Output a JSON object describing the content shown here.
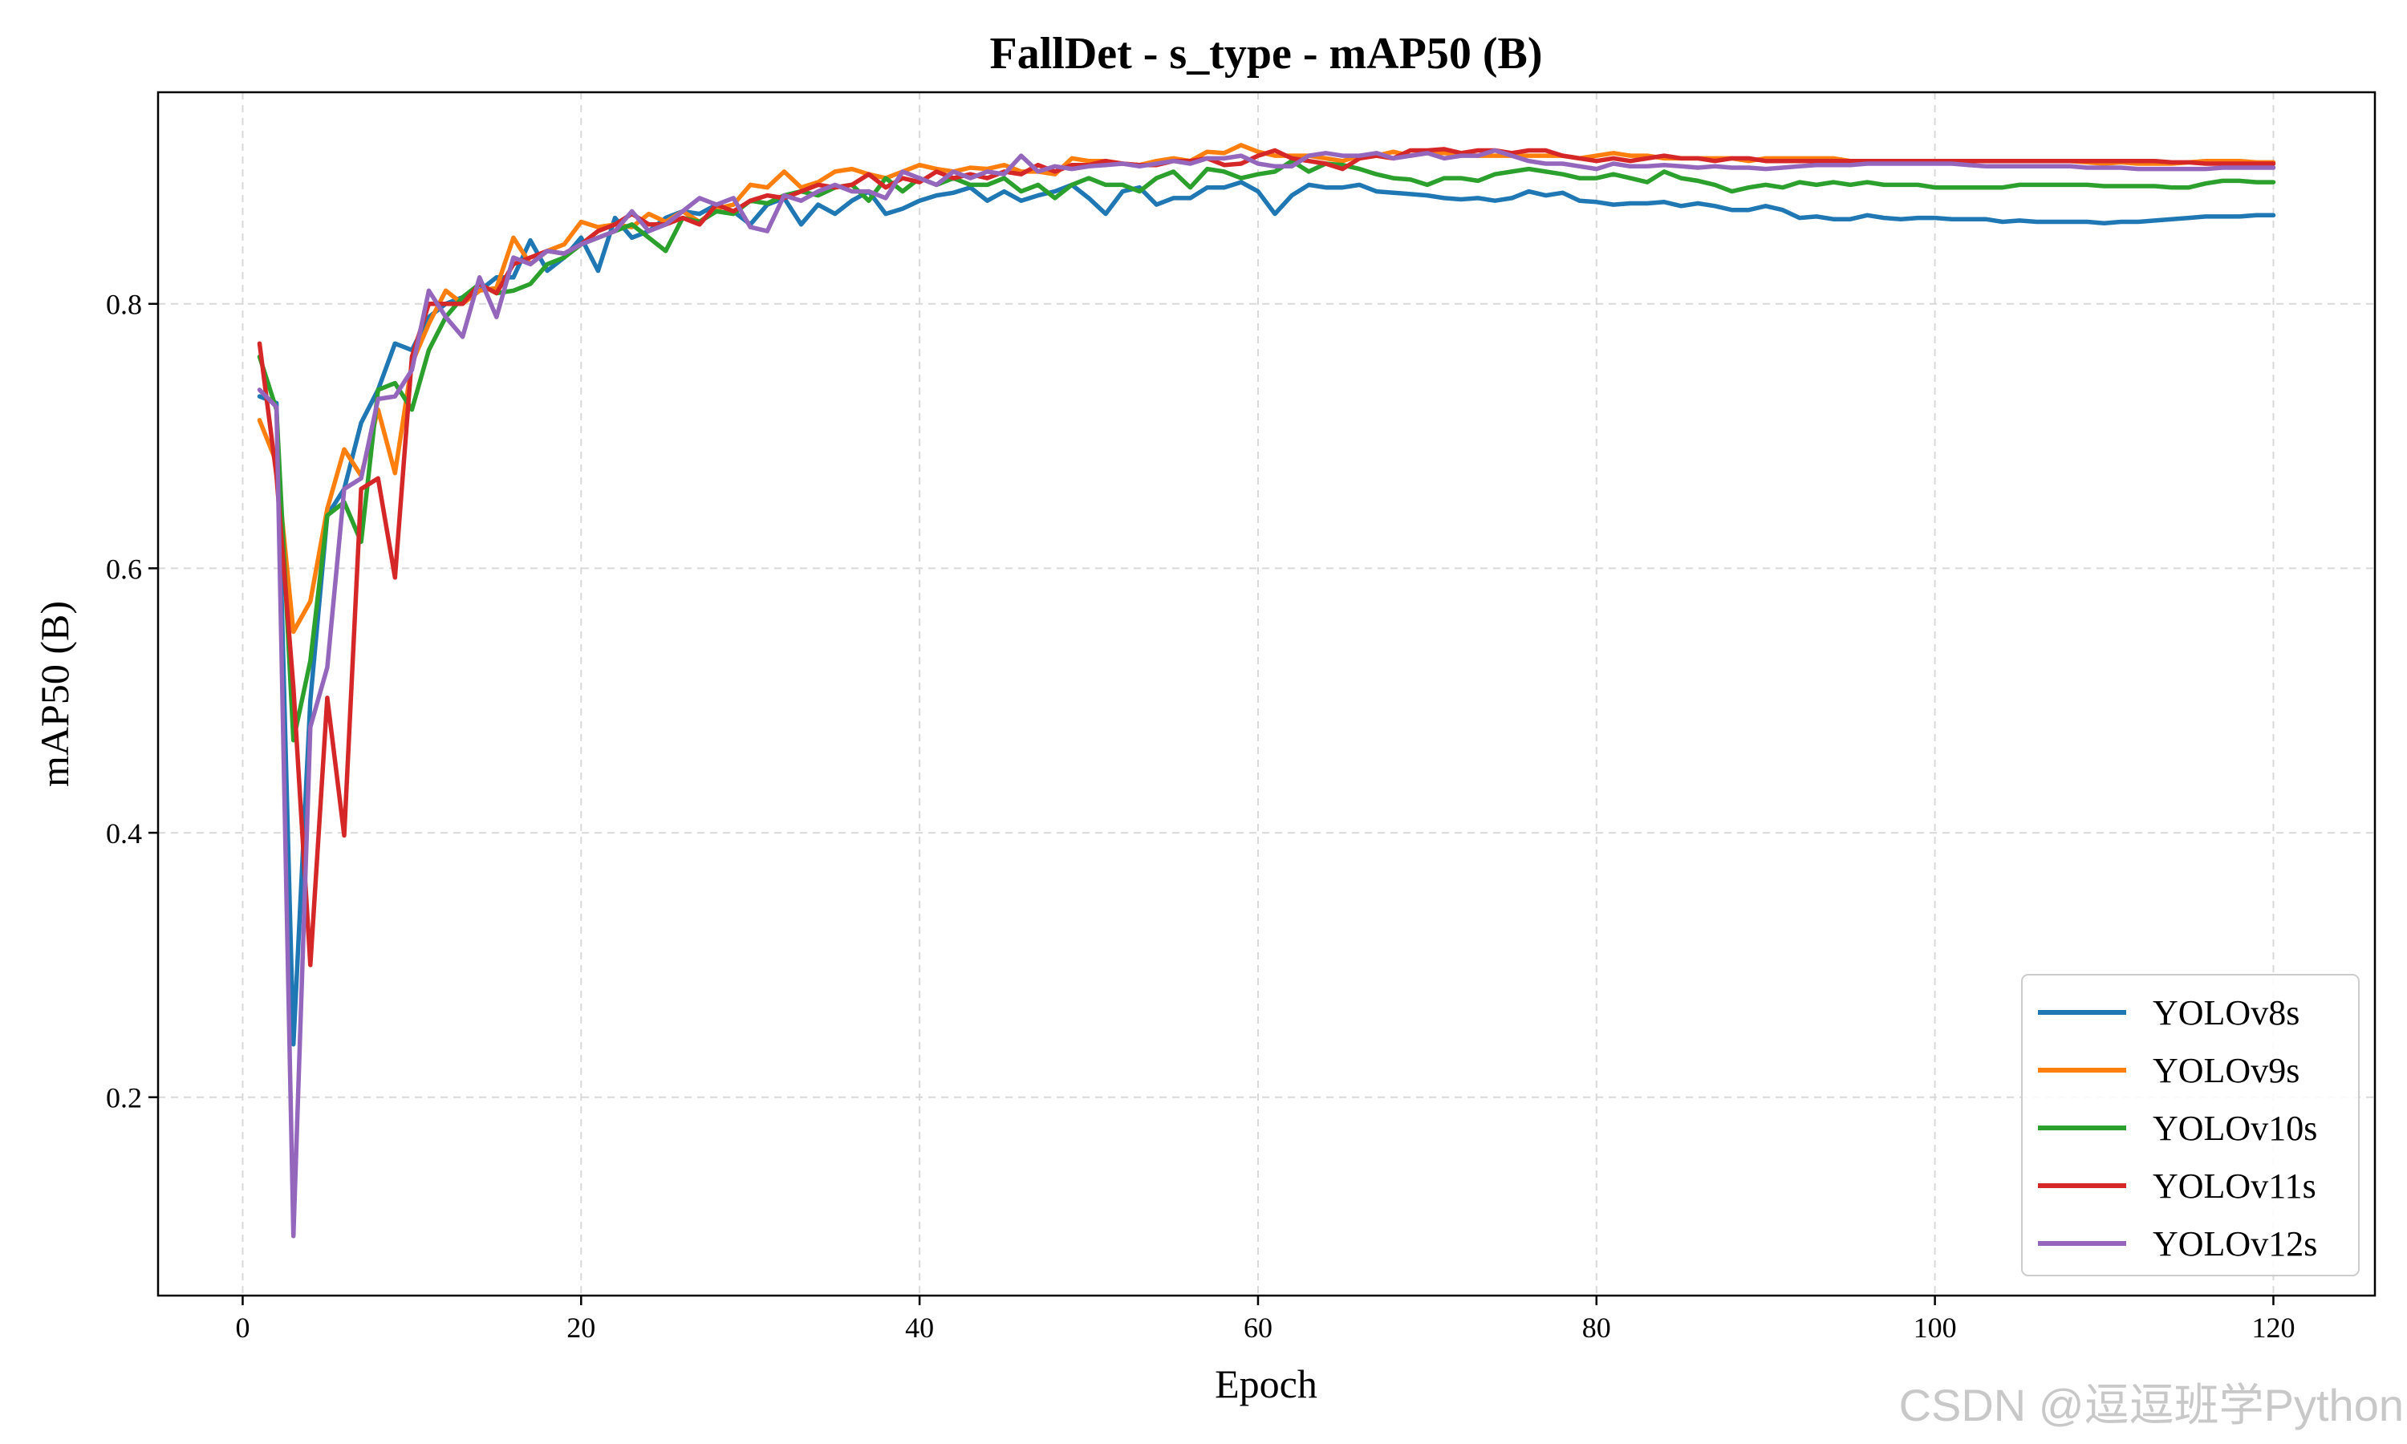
{
  "chart_data": {
    "type": "line",
    "title": "FallDet - s_type - mAP50 (B)",
    "xlabel": "Epoch",
    "ylabel": "mAP50 (B)",
    "xlim": [
      -5,
      126
    ],
    "ylim": [
      0.05,
      0.96
    ],
    "xticks": [
      0,
      20,
      40,
      60,
      80,
      100,
      120
    ],
    "yticks": [
      0.2,
      0.4,
      0.6,
      0.8
    ],
    "xtick_labels": [
      "0",
      "20",
      "40",
      "60",
      "80",
      "100",
      "120"
    ],
    "ytick_labels": [
      "0.2",
      "0.4",
      "0.6",
      "0.8"
    ],
    "grid": true,
    "legend_position": "lower-right",
    "series": [
      {
        "name": "YOLOv8s",
        "color": "#1f77b4",
        "x": [
          1,
          2,
          3,
          4,
          5,
          6,
          7,
          8,
          9,
          10,
          11,
          12,
          13,
          14,
          15,
          16,
          17,
          18,
          19,
          20,
          21,
          22,
          23,
          24,
          25,
          26,
          27,
          28,
          29,
          30,
          31,
          32,
          33,
          34,
          35,
          36,
          37,
          38,
          39,
          40,
          41,
          42,
          43,
          44,
          45,
          46,
          47,
          48,
          49,
          50,
          51,
          52,
          53,
          54,
          55,
          56,
          57,
          58,
          59,
          60,
          61,
          62,
          63,
          64,
          65,
          66,
          67,
          68,
          69,
          70,
          71,
          72,
          73,
          74,
          75,
          76,
          77,
          78,
          79,
          80,
          81,
          82,
          83,
          84,
          85,
          86,
          87,
          88,
          89,
          90,
          91,
          92,
          93,
          94,
          95,
          96,
          97,
          98,
          99,
          100,
          101,
          102,
          103,
          104,
          105,
          106,
          107,
          108,
          109,
          110,
          111,
          112,
          113,
          114,
          115,
          116,
          117,
          118,
          119,
          120
        ],
        "y": [
          0.73,
          0.725,
          0.24,
          0.5,
          0.64,
          0.66,
          0.71,
          0.735,
          0.77,
          0.765,
          0.79,
          0.8,
          0.805,
          0.81,
          0.82,
          0.82,
          0.848,
          0.825,
          0.835,
          0.85,
          0.825,
          0.865,
          0.85,
          0.855,
          0.865,
          0.87,
          0.868,
          0.875,
          0.87,
          0.86,
          0.875,
          0.88,
          0.86,
          0.875,
          0.868,
          0.878,
          0.885,
          0.868,
          0.872,
          0.878,
          0.882,
          0.884,
          0.888,
          0.878,
          0.885,
          0.878,
          0.882,
          0.885,
          0.89,
          0.88,
          0.868,
          0.885,
          0.888,
          0.875,
          0.88,
          0.88,
          0.888,
          0.888,
          0.892,
          0.885,
          0.868,
          0.882,
          0.89,
          0.888,
          0.888,
          0.89,
          0.885,
          0.884,
          0.883,
          0.882,
          0.88,
          0.879,
          0.88,
          0.878,
          0.88,
          0.885,
          0.882,
          0.884,
          0.878,
          0.877,
          0.875,
          0.876,
          0.876,
          0.877,
          0.874,
          0.876,
          0.874,
          0.871,
          0.871,
          0.874,
          0.871,
          0.865,
          0.866,
          0.864,
          0.864,
          0.867,
          0.865,
          0.864,
          0.865,
          0.865,
          0.864,
          0.864,
          0.864,
          0.862,
          0.863,
          0.862,
          0.862,
          0.862,
          0.862,
          0.861,
          0.862,
          0.862,
          0.863,
          0.864,
          0.865,
          0.866,
          0.866,
          0.866,
          0.867,
          0.867
        ]
      },
      {
        "name": "YOLOv9s",
        "color": "#ff7f0e",
        "x": [
          1,
          2,
          3,
          4,
          5,
          6,
          7,
          8,
          9,
          10,
          11,
          12,
          13,
          14,
          15,
          16,
          17,
          18,
          19,
          20,
          21,
          22,
          23,
          24,
          25,
          26,
          27,
          28,
          29,
          30,
          31,
          32,
          33,
          34,
          35,
          36,
          37,
          38,
          39,
          40,
          41,
          42,
          43,
          44,
          45,
          46,
          47,
          48,
          49,
          50,
          51,
          52,
          53,
          54,
          55,
          56,
          57,
          58,
          59,
          60,
          61,
          62,
          63,
          64,
          65,
          66,
          67,
          68,
          69,
          70,
          71,
          72,
          73,
          74,
          75,
          76,
          77,
          78,
          79,
          80,
          81,
          82,
          83,
          84,
          85,
          86,
          87,
          88,
          89,
          90,
          91,
          92,
          93,
          94,
          95,
          96,
          97,
          98,
          99,
          100,
          101,
          102,
          103,
          104,
          105,
          106,
          107,
          108,
          109,
          110,
          111,
          112,
          113,
          114,
          115,
          116,
          117,
          118,
          119,
          120
        ],
        "y": [
          0.712,
          0.68,
          0.552,
          0.575,
          0.645,
          0.69,
          0.67,
          0.72,
          0.672,
          0.755,
          0.785,
          0.81,
          0.8,
          0.81,
          0.812,
          0.85,
          0.83,
          0.84,
          0.845,
          0.862,
          0.858,
          0.86,
          0.858,
          0.868,
          0.862,
          0.87,
          0.862,
          0.872,
          0.875,
          0.89,
          0.888,
          0.9,
          0.888,
          0.892,
          0.9,
          0.902,
          0.898,
          0.895,
          0.9,
          0.905,
          0.902,
          0.9,
          0.903,
          0.902,
          0.905,
          0.9,
          0.9,
          0.898,
          0.91,
          0.908,
          0.908,
          0.906,
          0.905,
          0.908,
          0.91,
          0.908,
          0.915,
          0.914,
          0.92,
          0.915,
          0.912,
          0.912,
          0.912,
          0.91,
          0.908,
          0.912,
          0.912,
          0.915,
          0.912,
          0.914,
          0.914,
          0.913,
          0.912,
          0.912,
          0.912,
          0.912,
          0.912,
          0.912,
          0.91,
          0.912,
          0.914,
          0.912,
          0.912,
          0.91,
          0.91,
          0.91,
          0.91,
          0.91,
          0.908,
          0.91,
          0.91,
          0.91,
          0.91,
          0.91,
          0.908,
          0.908,
          0.908,
          0.908,
          0.908,
          0.908,
          0.908,
          0.908,
          0.908,
          0.908,
          0.908,
          0.908,
          0.908,
          0.908,
          0.907,
          0.906,
          0.907,
          0.906,
          0.906,
          0.906,
          0.907,
          0.908,
          0.908,
          0.908,
          0.907,
          0.907
        ]
      },
      {
        "name": "YOLOv10s",
        "color": "#2ca02c",
        "x": [
          1,
          2,
          3,
          4,
          5,
          6,
          7,
          8,
          9,
          10,
          11,
          12,
          13,
          14,
          15,
          16,
          17,
          18,
          19,
          20,
          21,
          22,
          23,
          24,
          25,
          26,
          27,
          28,
          29,
          30,
          31,
          32,
          33,
          34,
          35,
          36,
          37,
          38,
          39,
          40,
          41,
          42,
          43,
          44,
          45,
          46,
          47,
          48,
          49,
          50,
          51,
          52,
          53,
          54,
          55,
          56,
          57,
          58,
          59,
          60,
          61,
          62,
          63,
          64,
          65,
          66,
          67,
          68,
          69,
          70,
          71,
          72,
          73,
          74,
          75,
          76,
          77,
          78,
          79,
          80,
          81,
          82,
          83,
          84,
          85,
          86,
          87,
          88,
          89,
          90,
          91,
          92,
          93,
          94,
          95,
          96,
          97,
          98,
          99,
          100,
          101,
          102,
          103,
          104,
          105,
          106,
          107,
          108,
          109,
          110,
          111,
          112,
          113,
          114,
          115,
          116,
          117,
          118,
          119,
          120
        ],
        "y": [
          0.76,
          0.72,
          0.47,
          0.53,
          0.64,
          0.65,
          0.62,
          0.735,
          0.74,
          0.72,
          0.765,
          0.79,
          0.805,
          0.815,
          0.808,
          0.81,
          0.815,
          0.83,
          0.835,
          0.845,
          0.85,
          0.855,
          0.86,
          0.85,
          0.84,
          0.865,
          0.862,
          0.87,
          0.868,
          0.878,
          0.876,
          0.882,
          0.885,
          0.882,
          0.888,
          0.89,
          0.878,
          0.895,
          0.885,
          0.895,
          0.89,
          0.895,
          0.89,
          0.89,
          0.895,
          0.885,
          0.89,
          0.88,
          0.89,
          0.895,
          0.89,
          0.89,
          0.885,
          0.895,
          0.9,
          0.888,
          0.902,
          0.9,
          0.895,
          0.898,
          0.9,
          0.908,
          0.9,
          0.906,
          0.905,
          0.902,
          0.898,
          0.895,
          0.894,
          0.89,
          0.895,
          0.895,
          0.893,
          0.898,
          0.9,
          0.902,
          0.9,
          0.898,
          0.895,
          0.895,
          0.898,
          0.895,
          0.892,
          0.9,
          0.895,
          0.893,
          0.89,
          0.885,
          0.888,
          0.89,
          0.888,
          0.892,
          0.89,
          0.892,
          0.89,
          0.892,
          0.89,
          0.89,
          0.89,
          0.888,
          0.888,
          0.888,
          0.888,
          0.888,
          0.89,
          0.89,
          0.89,
          0.89,
          0.89,
          0.889,
          0.889,
          0.889,
          0.889,
          0.888,
          0.888,
          0.891,
          0.893,
          0.893,
          0.892,
          0.892
        ]
      },
      {
        "name": "YOLOv11s",
        "color": "#d62728",
        "x": [
          1,
          2,
          3,
          4,
          5,
          6,
          7,
          8,
          9,
          10,
          11,
          12,
          13,
          14,
          15,
          16,
          17,
          18,
          19,
          20,
          21,
          22,
          23,
          24,
          25,
          26,
          27,
          28,
          29,
          30,
          31,
          32,
          33,
          34,
          35,
          36,
          37,
          38,
          39,
          40,
          41,
          42,
          43,
          44,
          45,
          46,
          47,
          48,
          49,
          50,
          51,
          52,
          53,
          54,
          55,
          56,
          57,
          58,
          59,
          60,
          61,
          62,
          63,
          64,
          65,
          66,
          67,
          68,
          69,
          70,
          71,
          72,
          73,
          74,
          75,
          76,
          77,
          78,
          79,
          80,
          81,
          82,
          83,
          84,
          85,
          86,
          87,
          88,
          89,
          90,
          91,
          92,
          93,
          94,
          95,
          96,
          97,
          98,
          99,
          100,
          101,
          102,
          103,
          104,
          105,
          106,
          107,
          108,
          109,
          110,
          111,
          112,
          113,
          114,
          115,
          116,
          117,
          118,
          119,
          120
        ],
        "y": [
          0.77,
          0.67,
          0.51,
          0.3,
          0.502,
          0.398,
          0.66,
          0.668,
          0.593,
          0.76,
          0.8,
          0.8,
          0.8,
          0.815,
          0.808,
          0.83,
          0.835,
          0.84,
          0.838,
          0.845,
          0.855,
          0.86,
          0.868,
          0.86,
          0.86,
          0.865,
          0.86,
          0.875,
          0.87,
          0.878,
          0.882,
          0.88,
          0.885,
          0.89,
          0.888,
          0.89,
          0.898,
          0.888,
          0.895,
          0.892,
          0.9,
          0.895,
          0.898,
          0.895,
          0.9,
          0.898,
          0.905,
          0.9,
          0.905,
          0.905,
          0.908,
          0.906,
          0.905,
          0.905,
          0.908,
          0.908,
          0.91,
          0.905,
          0.906,
          0.912,
          0.916,
          0.91,
          0.908,
          0.906,
          0.902,
          0.91,
          0.912,
          0.91,
          0.916,
          0.916,
          0.917,
          0.914,
          0.916,
          0.916,
          0.914,
          0.916,
          0.916,
          0.912,
          0.91,
          0.908,
          0.91,
          0.908,
          0.91,
          0.912,
          0.91,
          0.91,
          0.908,
          0.91,
          0.91,
          0.908,
          0.908,
          0.908,
          0.908,
          0.908,
          0.908,
          0.908,
          0.908,
          0.908,
          0.908,
          0.908,
          0.908,
          0.908,
          0.908,
          0.908,
          0.908,
          0.908,
          0.908,
          0.908,
          0.908,
          0.908,
          0.908,
          0.908,
          0.908,
          0.907,
          0.907,
          0.906,
          0.906,
          0.906,
          0.906,
          0.906
        ]
      },
      {
        "name": "YOLOv12s",
        "color": "#9467bd",
        "x": [
          1,
          2,
          3,
          4,
          5,
          6,
          7,
          8,
          9,
          10,
          11,
          12,
          13,
          14,
          15,
          16,
          17,
          18,
          19,
          20,
          21,
          22,
          23,
          24,
          25,
          26,
          27,
          28,
          29,
          30,
          31,
          32,
          33,
          34,
          35,
          36,
          37,
          38,
          39,
          40,
          41,
          42,
          43,
          44,
          45,
          46,
          47,
          48,
          49,
          50,
          51,
          52,
          53,
          54,
          55,
          56,
          57,
          58,
          59,
          60,
          61,
          62,
          63,
          64,
          65,
          66,
          67,
          68,
          69,
          70,
          71,
          72,
          73,
          74,
          75,
          76,
          77,
          78,
          79,
          80,
          81,
          82,
          83,
          84,
          85,
          86,
          87,
          88,
          89,
          90,
          91,
          92,
          93,
          94,
          95,
          96,
          97,
          98,
          99,
          100,
          101,
          102,
          103,
          104,
          105,
          106,
          107,
          108,
          109,
          110,
          111,
          112,
          113,
          114,
          115,
          116,
          117,
          118,
          119,
          120
        ],
        "y": [
          0.735,
          0.722,
          0.095,
          0.48,
          0.525,
          0.66,
          0.668,
          0.728,
          0.73,
          0.75,
          0.81,
          0.79,
          0.775,
          0.82,
          0.79,
          0.835,
          0.83,
          0.84,
          0.838,
          0.845,
          0.85,
          0.855,
          0.87,
          0.855,
          0.86,
          0.87,
          0.88,
          0.875,
          0.88,
          0.858,
          0.855,
          0.882,
          0.878,
          0.885,
          0.89,
          0.885,
          0.885,
          0.88,
          0.9,
          0.895,
          0.89,
          0.9,
          0.895,
          0.9,
          0.898,
          0.912,
          0.9,
          0.904,
          0.902,
          0.904,
          0.905,
          0.906,
          0.904,
          0.906,
          0.908,
          0.906,
          0.91,
          0.91,
          0.912,
          0.906,
          0.904,
          0.904,
          0.912,
          0.914,
          0.912,
          0.912,
          0.914,
          0.91,
          0.912,
          0.914,
          0.91,
          0.912,
          0.912,
          0.916,
          0.912,
          0.908,
          0.906,
          0.906,
          0.904,
          0.902,
          0.906,
          0.904,
          0.904,
          0.905,
          0.904,
          0.903,
          0.904,
          0.903,
          0.903,
          0.902,
          0.903,
          0.904,
          0.905,
          0.905,
          0.905,
          0.906,
          0.906,
          0.906,
          0.906,
          0.906,
          0.906,
          0.905,
          0.904,
          0.904,
          0.904,
          0.904,
          0.904,
          0.904,
          0.903,
          0.903,
          0.903,
          0.902,
          0.902,
          0.902,
          0.902,
          0.902,
          0.903,
          0.903,
          0.903,
          0.903
        ]
      }
    ]
  },
  "watermark": "CSDN @逗逗班学Python"
}
